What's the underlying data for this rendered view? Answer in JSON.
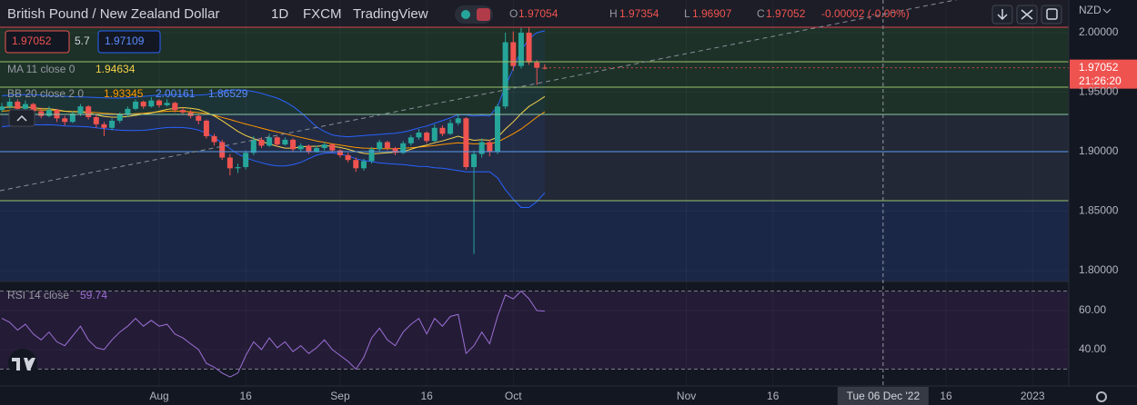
{
  "chart_data": [
    {
      "type": "candlestick",
      "title": "British Pound / New Zealand Dollar",
      "interval": "1D",
      "exchange": "FXCM",
      "publisher": "TradingView",
      "ohlc_letters": [
        "O",
        "H",
        "L",
        "C"
      ],
      "change_text": "-0.00002 (-0.00%)",
      "currency": "NZD",
      "bid": 1.97052,
      "spread": 5.7,
      "ask": 1.97109,
      "countdown": "21:26:20",
      "up_color": "#26a69a",
      "down_color": "#ef5350",
      "x": [
        0,
        1,
        2,
        3,
        4,
        5,
        6,
        7,
        8,
        9,
        10,
        11,
        12,
        13,
        14,
        15,
        16,
        17,
        18,
        19,
        20,
        21,
        22,
        23,
        24,
        25,
        26,
        27,
        28,
        29,
        30,
        31,
        32,
        33,
        34,
        35,
        36,
        37,
        38,
        39,
        40,
        41,
        42,
        43,
        44,
        45,
        46,
        47,
        48,
        49,
        50,
        51,
        52,
        53,
        54,
        55,
        56,
        57,
        58,
        59,
        60,
        61,
        62,
        63,
        64,
        65,
        66,
        67,
        68,
        69
      ],
      "open": [
        1.935,
        1.938,
        1.942,
        1.936,
        1.94,
        1.934,
        1.93,
        1.935,
        1.928,
        1.925,
        1.932,
        1.938,
        1.929,
        1.923,
        1.92,
        1.926,
        1.931,
        1.936,
        1.942,
        1.938,
        1.943,
        1.939,
        1.941,
        1.935,
        1.933,
        1.93,
        1.926,
        1.913,
        1.908,
        1.895,
        1.886,
        1.887,
        1.899,
        1.91,
        1.905,
        1.912,
        1.906,
        1.91,
        1.902,
        1.905,
        1.9,
        1.903,
        1.906,
        1.901,
        1.897,
        1.893,
        1.886,
        1.892,
        1.902,
        1.908,
        1.903,
        1.899,
        1.907,
        1.912,
        1.916,
        1.909,
        1.92,
        1.915,
        1.924,
        1.928,
        1.887,
        1.898,
        1.908,
        1.9,
        1.938,
        1.992,
        1.972,
        2.0,
        1.975,
        1.97054
      ],
      "high": [
        1.941,
        1.945,
        1.944,
        1.943,
        1.941,
        1.937,
        1.938,
        1.936,
        1.93,
        1.934,
        1.94,
        1.939,
        1.931,
        1.925,
        1.928,
        1.933,
        1.938,
        1.944,
        1.943,
        1.946,
        1.944,
        1.944,
        1.942,
        1.937,
        1.935,
        1.931,
        1.927,
        1.915,
        1.91,
        1.898,
        1.89,
        1.901,
        1.913,
        1.912,
        1.915,
        1.913,
        1.912,
        1.911,
        1.907,
        1.906,
        1.905,
        1.908,
        1.907,
        1.902,
        1.899,
        1.895,
        1.894,
        1.904,
        1.91,
        1.909,
        1.904,
        1.909,
        1.914,
        1.919,
        1.917,
        1.923,
        1.922,
        1.927,
        1.931,
        1.929,
        1.901,
        1.911,
        1.91,
        1.94,
        2.0,
        2.001,
        2.004,
        2.005,
        1.977,
        1.97354
      ],
      "low": [
        1.933,
        1.936,
        1.934,
        1.935,
        1.932,
        1.928,
        1.929,
        1.925,
        1.922,
        1.924,
        1.93,
        1.927,
        1.92,
        1.913,
        1.918,
        1.924,
        1.929,
        1.935,
        1.936,
        1.937,
        1.937,
        1.938,
        1.933,
        1.931,
        1.928,
        1.923,
        1.911,
        1.905,
        1.893,
        1.88,
        1.882,
        1.885,
        1.897,
        1.903,
        1.904,
        1.904,
        1.905,
        1.9,
        1.9,
        1.898,
        1.899,
        1.901,
        1.899,
        1.895,
        1.891,
        1.883,
        1.884,
        1.89,
        1.9,
        1.901,
        1.897,
        1.898,
        1.905,
        1.91,
        1.907,
        1.908,
        1.913,
        1.914,
        1.922,
        1.885,
        1.814,
        1.895,
        1.896,
        1.898,
        1.936,
        1.968,
        1.97,
        1.973,
        1.956,
        1.96907
      ],
      "close": [
        1.938,
        1.942,
        1.936,
        1.94,
        1.934,
        1.93,
        1.935,
        1.928,
        1.925,
        1.932,
        1.938,
        1.929,
        1.923,
        1.92,
        1.926,
        1.931,
        1.936,
        1.942,
        1.938,
        1.943,
        1.939,
        1.941,
        1.935,
        1.933,
        1.93,
        1.926,
        1.913,
        1.908,
        1.895,
        1.886,
        1.887,
        1.899,
        1.91,
        1.905,
        1.912,
        1.906,
        1.91,
        1.902,
        1.905,
        1.9,
        1.903,
        1.906,
        1.901,
        1.897,
        1.893,
        1.886,
        1.892,
        1.902,
        1.908,
        1.903,
        1.899,
        1.907,
        1.912,
        1.916,
        1.909,
        1.92,
        1.915,
        1.924,
        1.928,
        1.887,
        1.898,
        1.908,
        1.9,
        1.938,
        1.992,
        1.972,
        2.0,
        1.975,
        1.9705,
        1.97052
      ],
      "overlays": [
        {
          "name": "MA 11 close 0",
          "color": "#f6d34a",
          "values": [
            1.937,
            1.9375,
            1.9372,
            1.9375,
            1.937,
            1.9362,
            1.936,
            1.9352,
            1.934,
            1.9335,
            1.9335,
            1.9325,
            1.931,
            1.9295,
            1.929,
            1.929,
            1.9295,
            1.9305,
            1.9315,
            1.9325,
            1.934,
            1.9355,
            1.9365,
            1.937,
            1.9365,
            1.9355,
            1.933,
            1.93,
            1.926,
            1.9215,
            1.917,
            1.9135,
            1.911,
            1.9085,
            1.9065,
            1.9045,
            1.903,
            1.903,
            1.904,
            1.9045,
            1.9045,
            1.905,
            1.9045,
            1.9035,
            1.902,
            1.9,
            1.8985,
            1.898,
            1.8985,
            1.899,
            1.8995,
            1.9,
            1.902,
            1.904,
            1.9055,
            1.9075,
            1.909,
            1.911,
            1.913,
            1.911,
            1.9095,
            1.91,
            1.9095,
            1.912,
            1.919,
            1.925,
            1.932,
            1.938,
            1.942,
            1.94634
          ]
        },
        {
          "name": "BB 20 close 2 0",
          "basis_color": "#ff9800",
          "band_color": "#2962ff",
          "basis": [
            1.934,
            1.9345,
            1.9348,
            1.935,
            1.9352,
            1.935,
            1.9348,
            1.9345,
            1.934,
            1.9338,
            1.9336,
            1.9333,
            1.9328,
            1.9322,
            1.9318,
            1.9315,
            1.9315,
            1.9318,
            1.9322,
            1.9328,
            1.9335,
            1.934,
            1.9342,
            1.934,
            1.9335,
            1.9328,
            1.9318,
            1.9305,
            1.9288,
            1.927,
            1.925,
            1.9232,
            1.9215,
            1.9198,
            1.918,
            1.9165,
            1.915,
            1.9135,
            1.912,
            1.9105,
            1.909,
            1.9078,
            1.9065,
            1.9055,
            1.9045,
            1.9035,
            1.903,
            1.9028,
            1.9025,
            1.9025,
            1.9025,
            1.9028,
            1.9032,
            1.9038,
            1.9045,
            1.9052,
            1.906,
            1.9068,
            1.9075,
            1.907,
            1.9065,
            1.9068,
            1.9065,
            1.908,
            1.9115,
            1.915,
            1.919,
            1.924,
            1.929,
            1.93345
          ],
          "upper": [
            1.947,
            1.9475,
            1.9478,
            1.948,
            1.9478,
            1.9475,
            1.947,
            1.9468,
            1.9465,
            1.9462,
            1.946,
            1.9458,
            1.9455,
            1.9452,
            1.945,
            1.945,
            1.9452,
            1.9458,
            1.9465,
            1.947,
            1.9475,
            1.9478,
            1.948,
            1.9478,
            1.9475,
            1.9475,
            1.948,
            1.949,
            1.9505,
            1.9515,
            1.952,
            1.9515,
            1.9505,
            1.949,
            1.947,
            1.945,
            1.942,
            1.938,
            1.933,
            1.927,
            1.921,
            1.917,
            1.914,
            1.913,
            1.9125,
            1.913,
            1.9135,
            1.914,
            1.9145,
            1.915,
            1.9155,
            1.9165,
            1.918,
            1.92,
            1.9215,
            1.924,
            1.926,
            1.9285,
            1.931,
            1.931,
            1.93,
            1.9305,
            1.93,
            1.938,
            1.955,
            1.97,
            1.985,
            1.995,
            2.0,
            2.00161
          ],
          "lower": [
            1.921,
            1.9215,
            1.9218,
            1.922,
            1.9226,
            1.9225,
            1.9226,
            1.9222,
            1.9215,
            1.9214,
            1.9212,
            1.9208,
            1.9201,
            1.9192,
            1.9186,
            1.918,
            1.9178,
            1.9178,
            1.9179,
            1.9186,
            1.9195,
            1.9202,
            1.9204,
            1.9202,
            1.9195,
            1.9181,
            1.9156,
            1.912,
            1.9071,
            1.9025,
            1.898,
            1.8949,
            1.8925,
            1.8906,
            1.889,
            1.888,
            1.888,
            1.889,
            1.891,
            1.894,
            1.897,
            1.8986,
            1.899,
            1.898,
            1.8965,
            1.894,
            1.8925,
            1.8916,
            1.8905,
            1.89,
            1.8895,
            1.8891,
            1.8884,
            1.8876,
            1.8875,
            1.8864,
            1.886,
            1.8851,
            1.884,
            1.883,
            1.883,
            1.8831,
            1.883,
            1.878,
            1.868,
            1.86,
            1.853,
            1.853,
            1.858,
            1.86529
          ]
        }
      ],
      "xlim": [
        -0.23,
        135.6
      ],
      "xticks": [
        {
          "value": 20,
          "label": "Aug"
        },
        {
          "value": 31,
          "label": "16"
        },
        {
          "value": 43,
          "label": "Sep"
        },
        {
          "value": 54,
          "label": "16"
        },
        {
          "value": 65,
          "label": "Oct"
        },
        {
          "value": 87,
          "label": "Nov"
        },
        {
          "value": 98,
          "label": "16"
        },
        {
          "value": 120,
          "label": "16"
        },
        {
          "value": 131,
          "label": "2023"
        }
      ],
      "ylim": [
        1.7908,
        2.0275
      ],
      "yticks": [
        {
          "value": 2.0,
          "label": "2.00000"
        },
        {
          "value": 1.95,
          "label": "1.95000"
        },
        {
          "value": 1.9,
          "label": "1.90000"
        },
        {
          "value": 1.85,
          "label": "1.85000"
        },
        {
          "value": 1.8,
          "label": "1.80000"
        }
      ],
      "crosshair": {
        "x": 112,
        "label": "Tue 06 Dec '22"
      }
    },
    {
      "type": "line",
      "name": "RSI 14 close",
      "color": "#9c6fd6",
      "values": [
        56,
        54,
        50,
        53,
        48,
        45,
        49,
        44,
        42,
        47,
        52,
        45,
        41,
        40,
        45,
        49,
        52,
        56,
        52,
        55,
        52,
        53,
        48,
        46,
        43,
        40,
        33,
        31,
        28,
        26,
        28,
        37,
        44,
        40,
        46,
        41,
        44,
        39,
        42,
        38,
        41,
        45,
        40,
        37,
        34,
        30,
        36,
        46,
        51,
        45,
        42,
        49,
        53,
        56,
        48,
        56,
        52,
        57,
        58,
        38,
        42,
        49,
        43,
        57,
        68,
        66,
        70,
        66,
        60,
        59.74
      ],
      "ylim": [
        21.4,
        74.9
      ],
      "yticks": [
        {
          "value": 60,
          "label": "60.00"
        },
        {
          "value": 40,
          "label": "40.00"
        }
      ],
      "band_levels": [
        30,
        70
      ]
    }
  ]
}
